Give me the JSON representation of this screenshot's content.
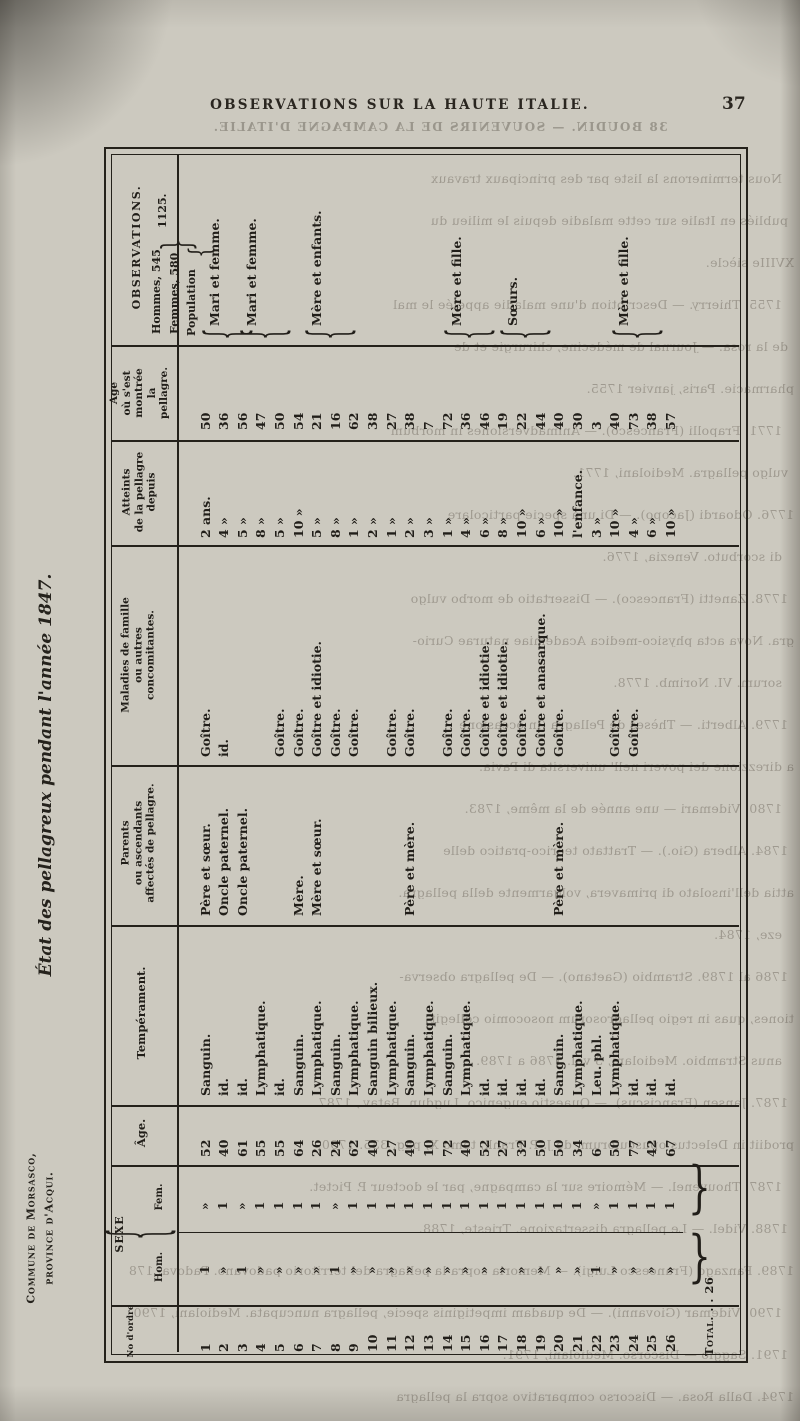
{
  "page": {
    "header": "OBSERVATIONS SUR LA HAUTE ITALIE.",
    "page_number": "37"
  },
  "margin": {
    "title": "État des pellagreux pendant l'année 1847.",
    "commune_line1": "Commune de Morsasco,",
    "commune_line2": "province d'Acqui."
  },
  "table": {
    "population": {
      "label": "Population",
      "hommes": "Hommes, 545",
      "femmes": "Femmes, 580",
      "total": "1125.",
      "brace_open": "{",
      "brace_close": "}"
    },
    "columns": {
      "no": "No d'ordre",
      "sexe": "SEXE",
      "sexe_hom": "Hom.",
      "sexe_fem": "Fem.",
      "age": "Âge.",
      "temp": "Tempérament.",
      "par": "Parents\nou ascendants\naffectés de pellagre.",
      "mal": "Maladies de famille\nou autres\nconcomitantes.",
      "att": "Atteints\nde la pellagre\ndepuis",
      "onset": "Age\noù s'est\nmontrée\nla\npellagre.",
      "observations": "OBSERVATIONS."
    },
    "total_label": "Total. . . 26",
    "brace_glyph": "{",
    "total_brace_glyph": "}",
    "observations_groups": [
      {
        "label": "Mari et femme.",
        "rows": [
          1,
          2
        ]
      },
      {
        "label": "Mari et femme.",
        "rows": [
          3,
          4
        ]
      },
      {
        "label": "Mère et enfants.",
        "rows": [
          6,
          8
        ]
      },
      {
        "label": "Mère et fille.",
        "rows": [
          14,
          15
        ]
      },
      {
        "label": "Sœurs.",
        "rows": [
          17,
          18
        ]
      },
      {
        "label": "Mère et fille.",
        "rows": [
          23,
          24
        ]
      }
    ],
    "rows": [
      {
        "no": "1",
        "hom": "1",
        "fem": "»",
        "age": "52",
        "temp": "Sanguin.",
        "par": "Père et sœur.",
        "mal": "Goître.",
        "att": "2 ans.",
        "onset": "50"
      },
      {
        "no": "2",
        "hom": "»",
        "fem": "1",
        "age": "40",
        "temp": "id.",
        "par": "Oncle paternel.",
        "mal": "id.",
        "att": "4 »",
        "onset": "36"
      },
      {
        "no": "3",
        "hom": "1",
        "fem": "»",
        "age": "61",
        "temp": "id.",
        "par": "Oncle paternel.",
        "mal": "",
        "att": "5 »",
        "onset": "56"
      },
      {
        "no": "4",
        "hom": "»",
        "fem": "1",
        "age": "55",
        "temp": "Lymphatique.",
        "par": "",
        "mal": "",
        "att": "8 »",
        "onset": "47"
      },
      {
        "no": "5",
        "hom": "»",
        "fem": "1",
        "age": "55",
        "temp": "id.",
        "par": "",
        "mal": "Goître.",
        "att": "5 »",
        "onset": "50"
      },
      {
        "no": "6",
        "hom": "»",
        "fem": "1",
        "age": "64",
        "temp": "Sanguin.",
        "par": "Mère.",
        "mal": "Goître.",
        "att": "10 »",
        "onset": "54"
      },
      {
        "no": "7",
        "hom": "»",
        "fem": "1",
        "age": "26",
        "temp": "Lymphatique.",
        "par": "Mère et sœur.",
        "mal": "Goître et idiotie.",
        "att": "5 »",
        "onset": "21"
      },
      {
        "no": "8",
        "hom": "1",
        "fem": "»",
        "age": "24",
        "temp": "Sanguin.",
        "par": "",
        "mal": "Goître.",
        "att": "8 »",
        "onset": "16"
      },
      {
        "no": "9",
        "hom": "»",
        "fem": "1",
        "age": "62",
        "temp": "Lymphatique.",
        "par": "",
        "mal": "Goître.",
        "att": "1 »",
        "onset": "62"
      },
      {
        "no": "10",
        "hom": "»",
        "fem": "1",
        "age": "40",
        "temp": "Sanguin bilieux.",
        "par": "",
        "mal": "",
        "att": "2 »",
        "onset": "38"
      },
      {
        "no": "11",
        "hom": "»",
        "fem": "1",
        "age": "27",
        "temp": "Lymphatique.",
        "par": "",
        "mal": "Goître.",
        "att": "1 »",
        "onset": "27"
      },
      {
        "no": "12",
        "hom": "»",
        "fem": "1",
        "age": "40",
        "temp": "Sanguin.",
        "par": "Père et mère.",
        "mal": "Goître.",
        "att": "2 »",
        "onset": "38"
      },
      {
        "no": "13",
        "hom": "»",
        "fem": "1",
        "age": "10",
        "temp": "Lymphatique.",
        "par": "",
        "mal": "",
        "att": "3 »",
        "onset": "7"
      },
      {
        "no": "14",
        "hom": "»",
        "fem": "1",
        "age": "72",
        "temp": "Sanguin.",
        "par": "",
        "mal": "Goître.",
        "att": "1 »",
        "onset": "72"
      },
      {
        "no": "15",
        "hom": "»",
        "fem": "1",
        "age": "40",
        "temp": "Lymphatique.",
        "par": "",
        "mal": "Goître.",
        "att": "4 »",
        "onset": "36"
      },
      {
        "no": "16",
        "hom": "»",
        "fem": "1",
        "age": "52",
        "temp": "id.",
        "par": "",
        "mal": "Goître et idiotie.",
        "att": "6 »",
        "onset": "46"
      },
      {
        "no": "17",
        "hom": "»",
        "fem": "1",
        "age": "27",
        "temp": "id.",
        "par": "",
        "mal": "Goître et idiotie.",
        "att": "8 »",
        "onset": "19"
      },
      {
        "no": "18",
        "hom": "»",
        "fem": "1",
        "age": "32",
        "temp": "id.",
        "par": "",
        "mal": "Goître.",
        "att": "10 »",
        "onset": "22"
      },
      {
        "no": "19",
        "hom": "»",
        "fem": "1",
        "age": "50",
        "temp": "id.",
        "par": "",
        "mal": "Goître et anasarque.",
        "att": "6 »",
        "onset": "44"
      },
      {
        "no": "20",
        "hom": "»",
        "fem": "1",
        "age": "50",
        "temp": "Sanguin.",
        "par": "Père et mère.",
        "mal": "Goître.",
        "att": "10 »",
        "onset": "40"
      },
      {
        "no": "21",
        "hom": "»",
        "fem": "1",
        "age": "34",
        "temp": "Lymphatique.",
        "par": "",
        "mal": "",
        "att": "l'enfance.",
        "onset": "30"
      },
      {
        "no": "22",
        "hom": "1",
        "fem": "»",
        "age": "6",
        "temp": "Leu. phl.",
        "par": "",
        "mal": "",
        "att": "3 »",
        "onset": "3"
      },
      {
        "no": "23",
        "hom": "»",
        "fem": "1",
        "age": "50",
        "temp": "Lymphatique.",
        "par": "",
        "mal": "Goître.",
        "att": "10 »",
        "onset": "40"
      },
      {
        "no": "24",
        "hom": "»",
        "fem": "1",
        "age": "77",
        "temp": "id.",
        "par": "",
        "mal": "Goître.",
        "att": "4 »",
        "onset": "73"
      },
      {
        "no": "25",
        "hom": "»",
        "fem": "1",
        "age": "42",
        "temp": "id.",
        "par": "",
        "mal": "",
        "att": "6 »",
        "onset": "38"
      },
      {
        "no": "26",
        "hom": "»",
        "fem": "1",
        "age": "67",
        "temp": "id.",
        "par": "",
        "mal": "",
        "att": "10 »",
        "onset": "57"
      }
    ]
  },
  "bleedthrough": {
    "header": "38      BOUDIN. — SOUVENIRS DE LA CAMPAGNE D'ITALIE.",
    "lines": [
      "Nous terminerons la liste par des principaux travaux",
      "publiés en Italie sur cette maladie depuis le milieu du",
      "XVIIIe siècle.",
      "1755. Thierry. — Description d'une maladie appelée le mal",
      "de la rosa. — Journal de médecine, chirurgie et de",
      "pharmacie. Paris, janvier 1755.",
      "1771. Frapolli (Francesco). — Animadversiones in morbum",
      "vulgo pellagra. Mediolani, 1771.",
      "1776. Odoardi (Jacopo). — Di una specie particolare",
      "di scorbuto. Venezia, 1776.",
      "1778. Zanetti (Francesco). — Dissertatio de morbo vulgo",
      "gra. Nova acta physico-medica Academiae naturae Curio-",
      "sorum. VI. Norimb. 1778.",
      "1779. Alberti. — Thèses de Pellagra (in occasione",
      "a direzzione dei poveri nell' universita di Pavia.",
      "1780. Videmari — une année de la même, 1783.",
      "1784. Albera (Gio.). — Trattato teorico-pratico delle",
      "attia dell'insolato di primavera, volgarmente della pellagra.",
      "eze, 1784.",
      "1786 al 1789. Strambio (Gaetano). — De pellagra observa-",
      "tiones, quas in regio pellagrosorum nosocomio collegit",
      "anus Strambio. Mediolani, 3 vol. 1786 a 1789.",
      "1787. Jansen (Franciscus). — Quaestio eugenico. Lugdun. Batav., 1787.",
      "prodiit in Delectus opusculorum, de J.-P. Frank, tomo X, pag. 335. 1790.",
      "1787. Thouvenel. — Mémoire sur la campagne, par le docteur P. Pictet.",
      "1788. Videl. — Le pellagra dissertazione. Trieste, 1788.",
      "1789. Fanzago (Francesco Luigi). — Memoria sopra la pellagra del territorio padovano. Padova, 1789.",
      "1790. Videmar (Giovanni). — De quadam impetiginis specie, pellagra nuncupata. Mediolani, 1790.",
      "1791. Saggio — Discorso. Mediolani, 1791.",
      "1794. Dalla Rosa. — Discorso comparativo sopra la pellagra"
    ]
  },
  "colors": {
    "paper": "#ccc9bf",
    "ink": "#211e19",
    "bleed_ink": "rgba(86,80,69,0.38)"
  }
}
